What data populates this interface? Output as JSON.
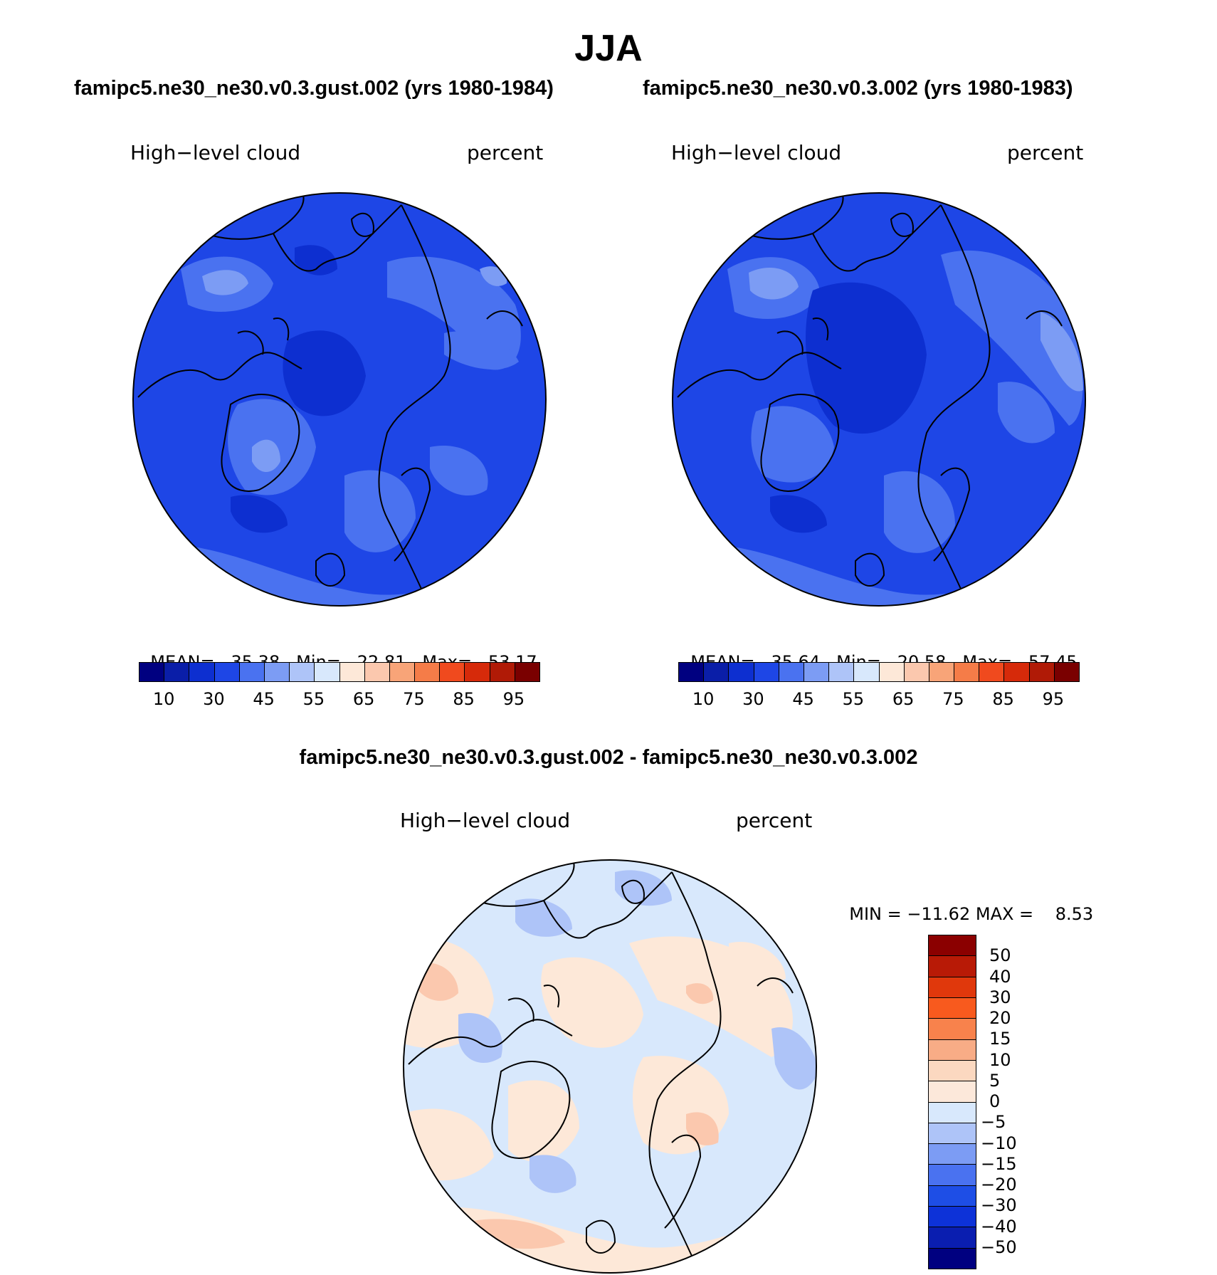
{
  "title": "JJA",
  "panels": {
    "left": {
      "case": "famipc5.ne30_ne30.v0.3.gust.002 (yrs 1980-1984)",
      "variable": "High−level cloud",
      "units": "percent",
      "stats": {
        "mean_label": "MEAN=",
        "mean": "35.38",
        "min_label": "Min=",
        "min": "22.81",
        "max_label": "Max=",
        "max": "53.17"
      }
    },
    "right": {
      "case": "famipc5.ne30_ne30.v0.3.002 (yrs 1980-1983)",
      "variable": "High−level cloud",
      "units": "percent",
      "stats": {
        "mean_label": "MEAN=",
        "mean": "35.64",
        "min_label": "Min=",
        "min": "20.58",
        "max_label": "Max=",
        "max": "57.45"
      }
    },
    "diff": {
      "case": "famipc5.ne30_ne30.v0.3.gust.002 - famipc5.ne30_ne30.v0.3.002",
      "variable": "High−level cloud",
      "units": "percent",
      "stats": {
        "min_label": "MIN =",
        "min": "−11.62",
        "max_label": "MAX =",
        "max": "8.53"
      }
    }
  },
  "colorbar_abs": {
    "colors": [
      "#000080",
      "#0a1ea8",
      "#0d2fd0",
      "#1e46e6",
      "#4a72f0",
      "#7c9cf4",
      "#aec4f8",
      "#d8e8fc",
      "#fde8d8",
      "#fbc8ae",
      "#f8a478",
      "#f57c48",
      "#f04a1e",
      "#d62a0a",
      "#b01a06",
      "#7a0000"
    ],
    "tick_labels": [
      "10",
      "30",
      "45",
      "55",
      "65",
      "75",
      "85",
      "95"
    ]
  },
  "colorbar_diff": {
    "colors": [
      "#8b0000",
      "#b81a06",
      "#e0380c",
      "#f85a1e",
      "#f8824c",
      "#f8ac86",
      "#fbd8c0",
      "#fce8da",
      "#d8e8fc",
      "#aec4f8",
      "#7c9cf4",
      "#4a72f0",
      "#1e4ee6",
      "#0d32d8",
      "#0a1eb0",
      "#000080"
    ],
    "tick_labels": [
      "50",
      "40",
      "30",
      "20",
      "15",
      "10",
      "5",
      "0",
      "−5",
      "−10",
      "−15",
      "−20",
      "−30",
      "−40",
      "−50"
    ]
  },
  "map_colors": {
    "ocean_abs": "#1e46e6",
    "abs_light": "#4a72f0",
    "abs_lighter": "#7c9cf4",
    "abs_dark": "#0d2fd0",
    "diff_pos": "#fde8d8",
    "diff_pos2": "#fbc8ae",
    "diff_neg": "#d8e8fc",
    "diff_neg2": "#aec4f8",
    "coast": "#000000"
  }
}
